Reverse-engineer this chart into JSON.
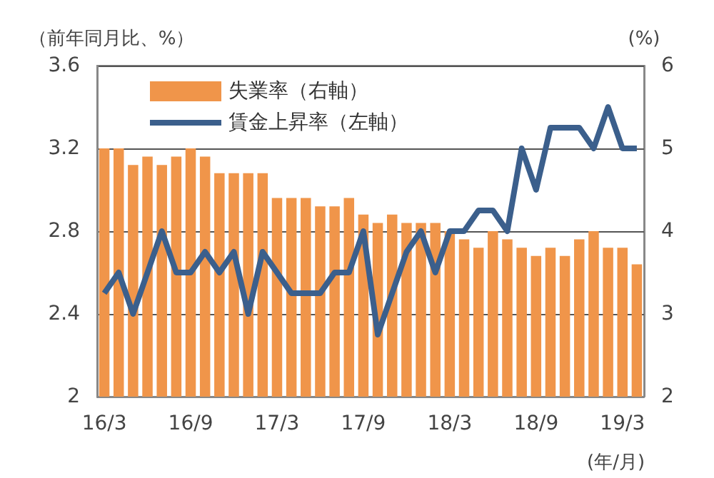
{
  "chart_data": {
    "type": "bar",
    "categories": [
      "16/3",
      null,
      null,
      null,
      null,
      null,
      "16/9",
      null,
      null,
      null,
      null,
      null,
      "17/3",
      null,
      null,
      null,
      null,
      null,
      "17/9",
      null,
      null,
      null,
      null,
      null,
      "18/3",
      null,
      null,
      null,
      null,
      null,
      "18/9",
      null,
      null,
      null,
      null,
      null,
      "19/3",
      null
    ],
    "series": [
      {
        "name": "失業率（右軸）",
        "axis": "y2",
        "color": "#f0954a",
        "values": [
          5.0,
          5.0,
          4.8,
          4.9,
          4.8,
          4.9,
          5.0,
          4.9,
          4.7,
          4.7,
          4.7,
          4.7,
          4.4,
          4.4,
          4.4,
          4.3,
          4.3,
          4.4,
          4.2,
          4.1,
          4.2,
          4.1,
          4.1,
          4.1,
          4.0,
          3.9,
          3.8,
          4.0,
          3.9,
          3.8,
          3.7,
          3.8,
          3.7,
          3.9,
          4.0,
          3.8,
          3.8,
          3.6
        ]
      },
      {
        "name": "賃金上昇率（左軸）",
        "type": "line",
        "color": "#3b5f8c",
        "values": [
          2.5,
          2.6,
          2.4,
          2.6,
          2.8,
          2.6,
          2.6,
          2.7,
          2.6,
          2.7,
          2.4,
          2.7,
          2.6,
          2.5,
          2.5,
          2.5,
          2.6,
          2.6,
          2.8,
          2.3,
          2.5,
          2.7,
          2.8,
          2.6,
          2.8,
          2.8,
          2.9,
          2.9,
          2.8,
          3.2,
          3.0,
          3.3,
          3.3,
          3.3,
          3.2,
          3.4,
          3.2,
          3.2
        ]
      }
    ],
    "ylabel": "（前年同月比、%）",
    "y2label": "(%)",
    "xlabel": "(年/月)",
    "ylim": [
      2,
      3.6
    ],
    "yticks": [
      2,
      2.4,
      2.8,
      3.2,
      3.6
    ],
    "y2lim": [
      2,
      6
    ],
    "y2ticks": [
      2,
      3,
      4,
      5,
      6
    ],
    "grid": "y",
    "legend": "top left",
    "marker": "none",
    "line_style": "solid"
  }
}
